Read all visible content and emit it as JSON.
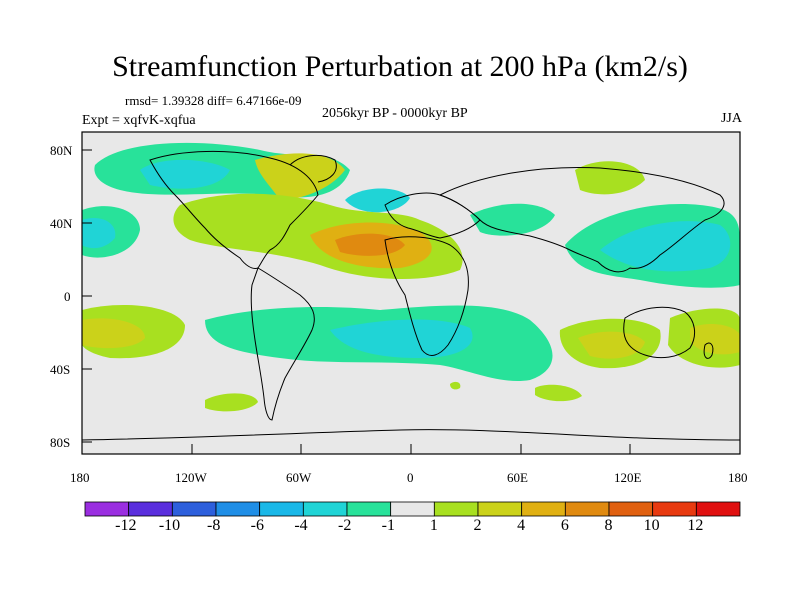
{
  "title": "Streamfunction Perturbation at 200 hPa (km2/s)",
  "stats": "rmsd= 1.39328 diff= 6.47166e-09",
  "experiment": "Expt = xqfvK-xqfua",
  "period": "2056kyr BP - 0000kyr BP",
  "season": "JJA",
  "lat_labels": [
    "80N",
    "40N",
    "0",
    "40S",
    "80S"
  ],
  "lon_labels": [
    "180",
    "120W",
    "60W",
    "0",
    "60E",
    "120E",
    "180"
  ],
  "colorbar": {
    "labels": [
      "-12",
      "-10",
      "-8",
      "-6",
      "-4",
      "-2",
      "-1",
      "1",
      "2",
      "4",
      "6",
      "8",
      "10",
      "12"
    ],
    "colors": [
      "#9a2ee0",
      "#5a2edd",
      "#2d5fdc",
      "#1f8ee6",
      "#1ab8e8",
      "#20d4d6",
      "#28e29a",
      "#e8e8e8",
      "#a8e020",
      "#cbd21a",
      "#e0b012",
      "#e08a10",
      "#e06010",
      "#e83a10",
      "#e01010"
    ]
  },
  "colors": {
    "ocean": "#e8e8e8",
    "coast": "#000000"
  }
}
